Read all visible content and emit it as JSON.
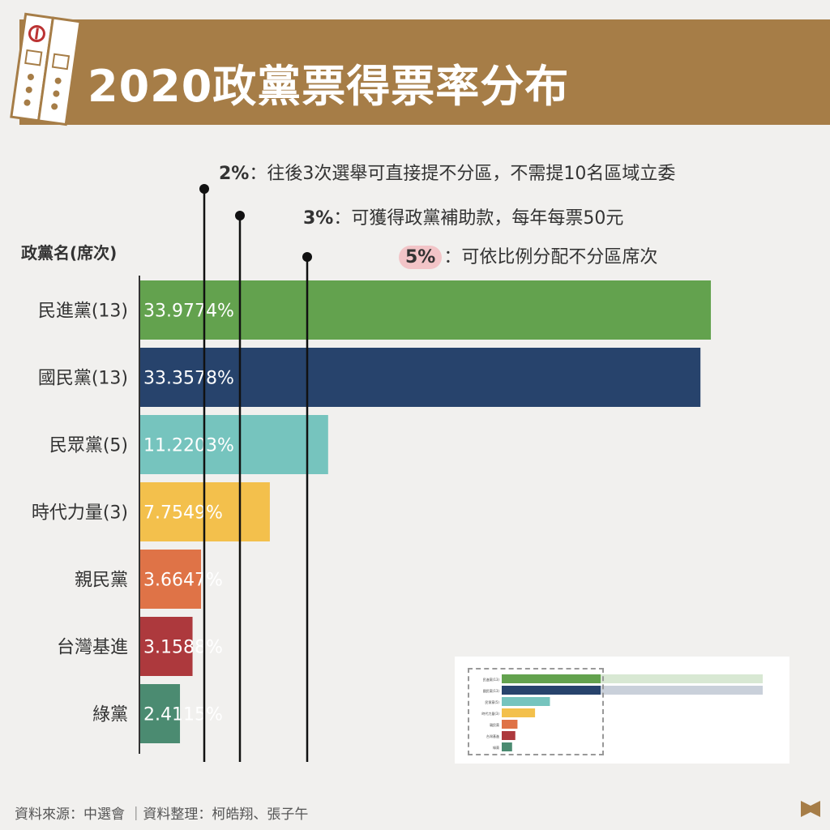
{
  "title": "2020政黨票得票率分布",
  "axis_title": "政黨名(席次)",
  "rules": [
    {
      "pct": "2%",
      "text": "：往後3次選舉可直接提不分區，不需提10名區域立委",
      "threshold": 2
    },
    {
      "pct": "3%",
      "text": "：可獲得政黨補助款，每年每票50元",
      "threshold": 3
    },
    {
      "pct": "5%",
      "text": "：可依比例分配不分區席次",
      "threshold": 5
    }
  ],
  "source": "資料來源：中選會 ｜資料整理：柯皓翔、張子午",
  "chart_data": {
    "type": "bar",
    "orientation": "horizontal",
    "title": "2020政黨票得票率分布",
    "ylabel": "政黨名(席次)",
    "categories": [
      "民進黨(13)",
      "國民黨(13)",
      "民眾黨(5)",
      "時代力量(3)",
      "親民黨",
      "台灣基進",
      "綠黨"
    ],
    "values": [
      33.9774,
      33.3578,
      11.2203,
      7.7549,
      3.6647,
      3.1588,
      2.4115
    ],
    "value_labels": [
      "33.9774%",
      "33.3578%",
      "11.2203%",
      "7.7549%",
      "3.6647%",
      "3.1588%",
      "2.4115%"
    ],
    "colors": [
      "#63a24e",
      "#27436c",
      "#76c4be",
      "#f3c04c",
      "#df7347",
      "#ad393d",
      "#4b8b71"
    ],
    "reference_lines": [
      2,
      3,
      5
    ],
    "x_unit": "%"
  }
}
